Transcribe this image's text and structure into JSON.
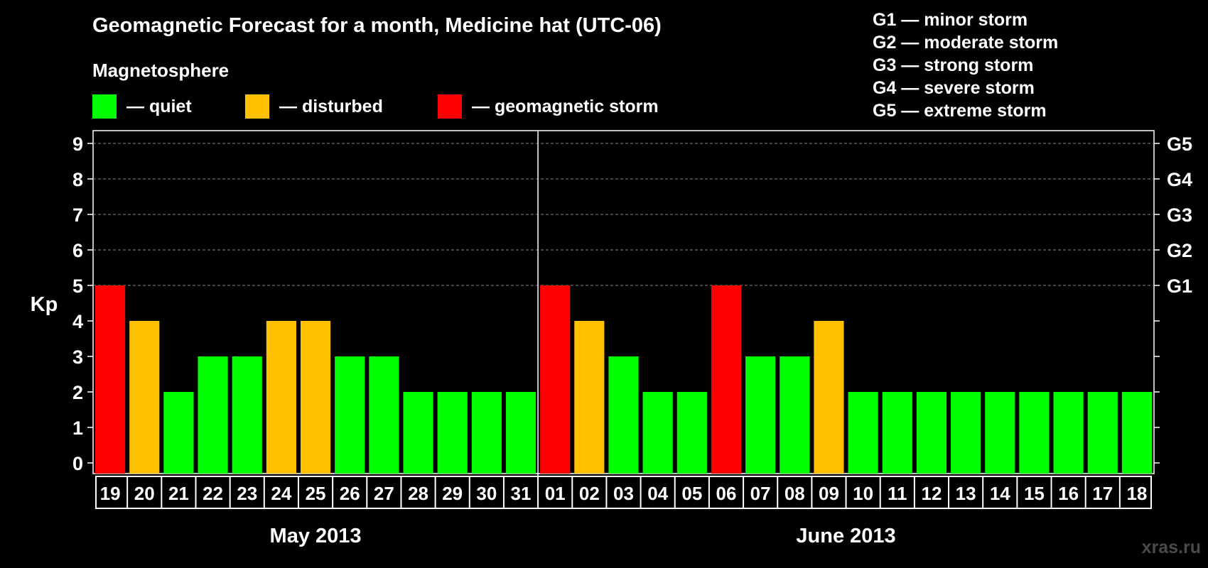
{
  "title": "Geomagnetic Forecast for a month, Medicine hat (UTC-06)",
  "subtitle": "Magnetosphere",
  "legend": [
    {
      "label": "— quiet",
      "color": "#00ff00"
    },
    {
      "label": "— disturbed",
      "color": "#ffc000"
    },
    {
      "label": "— geomagnetic storm",
      "color": "#ff0000"
    }
  ],
  "storm_scale": [
    "G1 — minor storm",
    "G2 — moderate storm",
    "G3 — strong storm",
    "G4 — severe storm",
    "G5 — extreme storm"
  ],
  "watermark": "xras.ru",
  "colors": {
    "quiet": "#00ff00",
    "disturbed": "#ffc000",
    "storm": "#ff0000",
    "background": "#000000",
    "axis": "#ffffff"
  },
  "chart_data": {
    "type": "bar",
    "ylabel": "Kp",
    "ylim": [
      0,
      9
    ],
    "yticks": [
      "0",
      "1",
      "2",
      "3",
      "4",
      "5",
      "6",
      "7",
      "8",
      "9"
    ],
    "right_tick_labels": [
      {
        "kp": 5,
        "label": "G1"
      },
      {
        "kp": 6,
        "label": "G2"
      },
      {
        "kp": 7,
        "label": "G3"
      },
      {
        "kp": 8,
        "label": "G4"
      },
      {
        "kp": 9,
        "label": "G5"
      }
    ],
    "grid": "dashed horizontal",
    "months": [
      {
        "label": "May 2013",
        "days": 13
      },
      {
        "label": "June 2013",
        "days": 18
      }
    ],
    "categories": [
      "19",
      "20",
      "21",
      "22",
      "23",
      "24",
      "25",
      "26",
      "27",
      "28",
      "29",
      "30",
      "31",
      "01",
      "02",
      "03",
      "04",
      "05",
      "06",
      "07",
      "08",
      "09",
      "10",
      "11",
      "12",
      "13",
      "14",
      "15",
      "16",
      "17",
      "18"
    ],
    "values": [
      5,
      4,
      2,
      3,
      3,
      4,
      4,
      3,
      3,
      2,
      2,
      2,
      2,
      5,
      4,
      3,
      2,
      2,
      5,
      3,
      3,
      4,
      2,
      2,
      2,
      2,
      2,
      2,
      2,
      2,
      2
    ]
  }
}
